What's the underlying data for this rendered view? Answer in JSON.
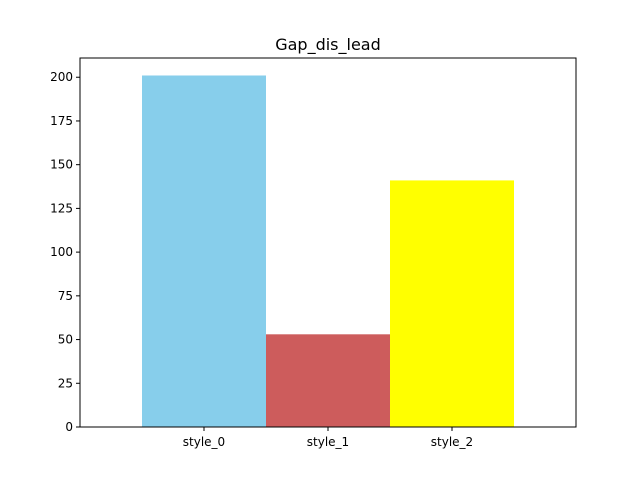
{
  "chart_data": {
    "type": "bar",
    "title": "Gap_dis_lead",
    "xlabel": "",
    "ylabel": "",
    "categories": [
      "style_0",
      "style_1",
      "style_2"
    ],
    "values": [
      201,
      53,
      141
    ],
    "bar_colors": [
      "#87CEEB",
      "#CD5C5C",
      "#FFFF00"
    ],
    "ylim": [
      0,
      211
    ],
    "yticks": [
      0,
      25,
      50,
      75,
      100,
      125,
      150,
      175,
      200
    ],
    "grid": false,
    "legend": "none"
  }
}
